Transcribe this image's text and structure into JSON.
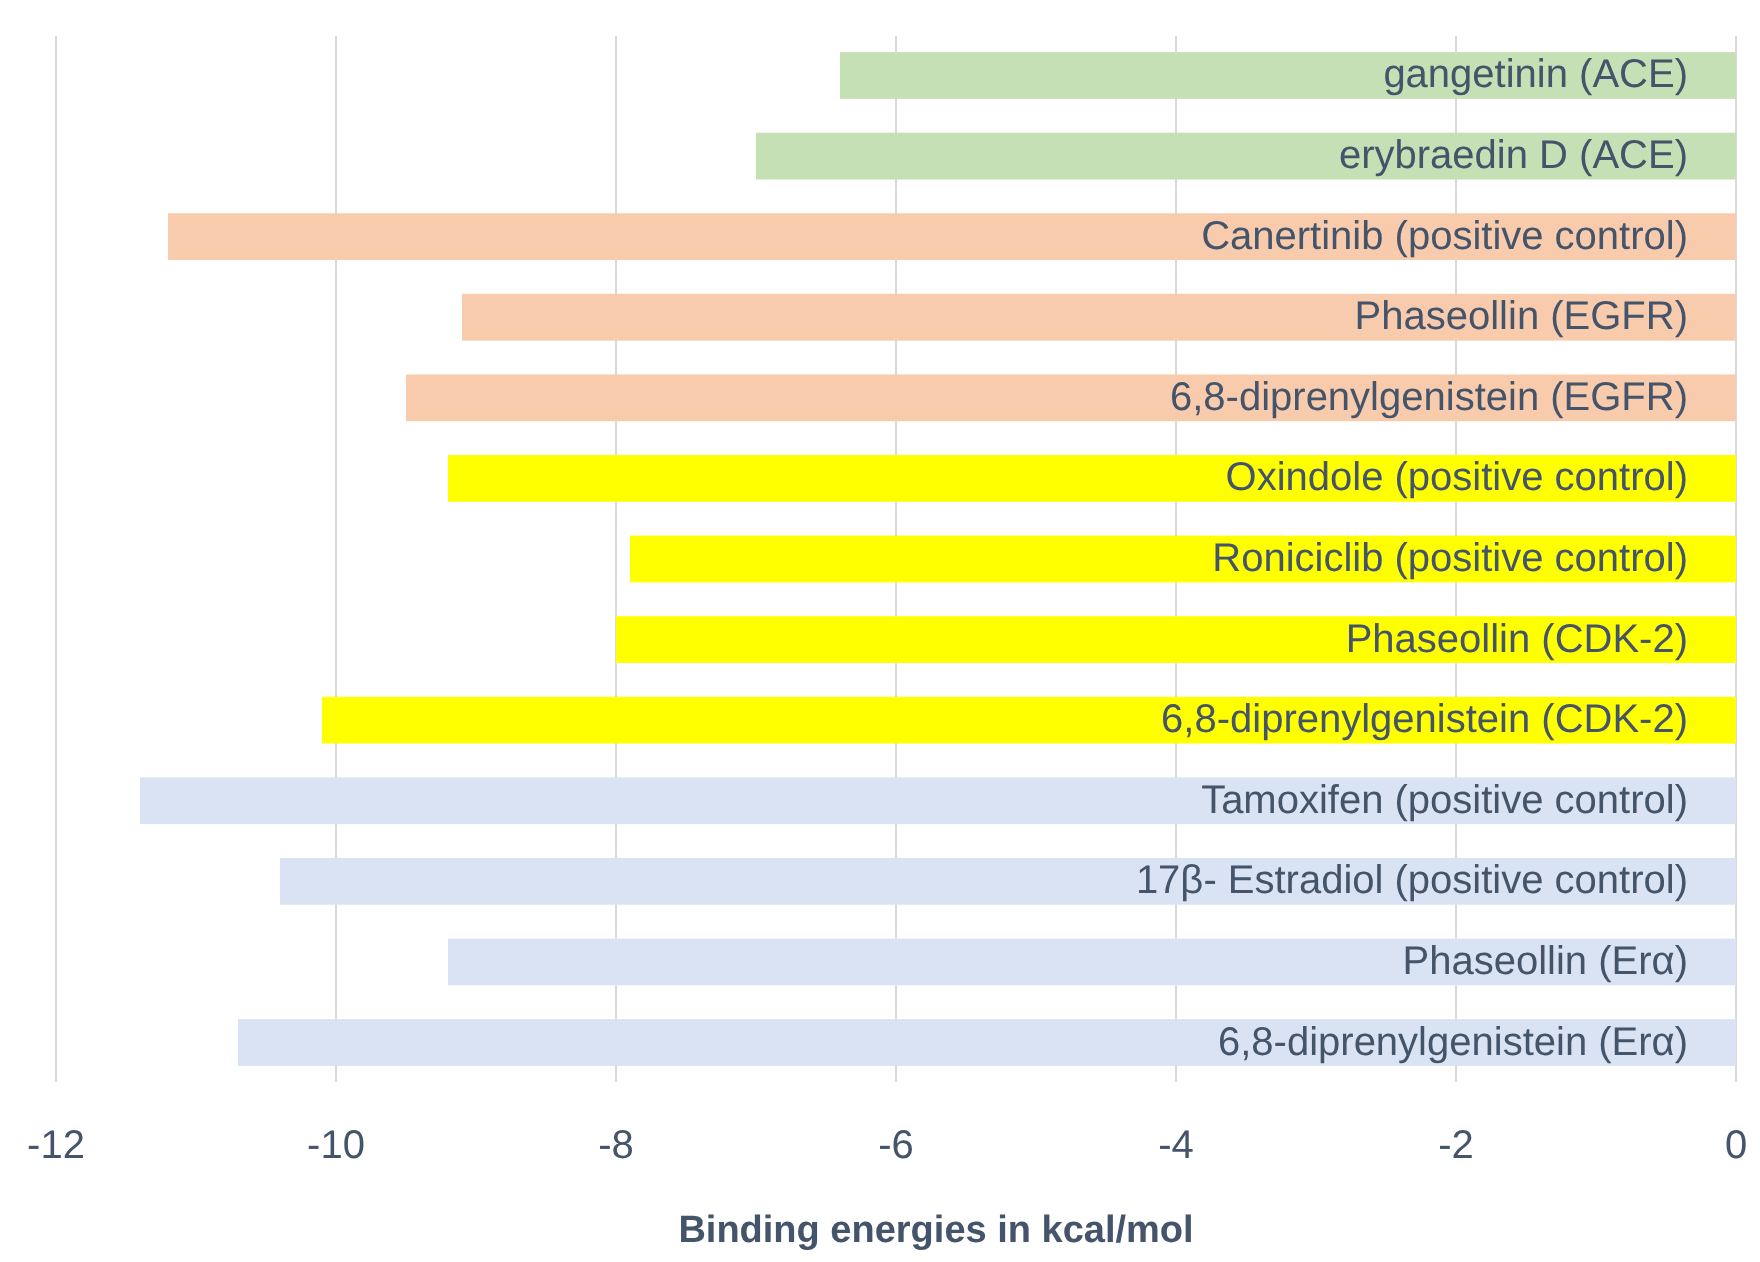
{
  "chart_data": {
    "type": "bar",
    "orientation": "horizontal",
    "xlabel": "Binding energies in kcal/mol",
    "categories": [
      "gangetinin (ACE)",
      "erybraedin D (ACE)",
      "Canertinib (positive control)",
      "Phaseollin (EGFR)",
      "6,8-diprenylgenistein (EGFR)",
      "Oxindole (positive control)",
      "Roniciclib (positive control)",
      "Phaseollin (CDK-2)",
      "6,8-diprenylgenistein (CDK-2)",
      "Tamoxifen (positive control)",
      "17β- Estradiol (positive control)",
      "Phaseollin (Erα)",
      "6,8-diprenylgenistein (Erα)"
    ],
    "values": [
      -6.4,
      -7.0,
      -11.2,
      -9.1,
      -9.5,
      -9.2,
      -7.9,
      -8.0,
      -10.1,
      -11.4,
      -10.4,
      -9.2,
      -10.7
    ],
    "colors": [
      "#c5e0b4",
      "#c5e0b4",
      "#f8cbad",
      "#f8cbad",
      "#f8cbad",
      "#ffff00",
      "#ffff00",
      "#ffff00",
      "#ffff00",
      "#dae3f3",
      "#dae3f3",
      "#dae3f3",
      "#dae3f3"
    ],
    "xlim": [
      -12,
      0
    ],
    "xticks": [
      -12,
      -10,
      -8,
      -6,
      -4,
      -2,
      0
    ],
    "grid": "x"
  }
}
